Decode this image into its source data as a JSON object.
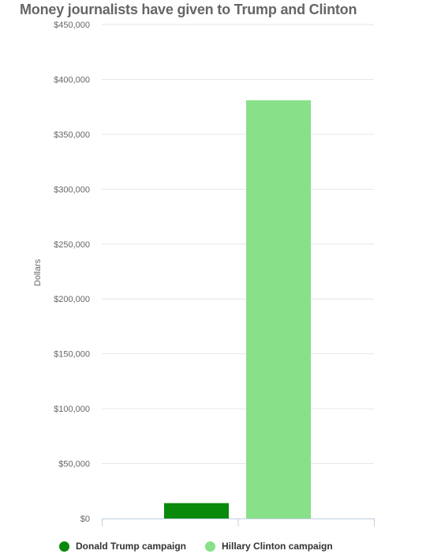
{
  "chart_data": {
    "type": "bar",
    "title": "Money journalists have given to Trump and Clinton",
    "ylabel": "Dollars",
    "xlabel": "",
    "ylim": [
      0,
      450000
    ],
    "yticks": [
      0,
      50000,
      100000,
      150000,
      200000,
      250000,
      300000,
      350000,
      400000,
      450000
    ],
    "ytick_labels": [
      "$0",
      "$50,000",
      "$100,000",
      "$150,000",
      "$200,000",
      "$250,000",
      "$300,000",
      "$350,000",
      "$400,000",
      "$450,000"
    ],
    "grid": true,
    "legend_position": "bottom-left",
    "series": [
      {
        "name": "Donald Trump campaign",
        "value": 14000,
        "color": "#0a8a0a"
      },
      {
        "name": "Hillary Clinton campaign",
        "value": 381000,
        "color": "#88e088"
      }
    ]
  }
}
